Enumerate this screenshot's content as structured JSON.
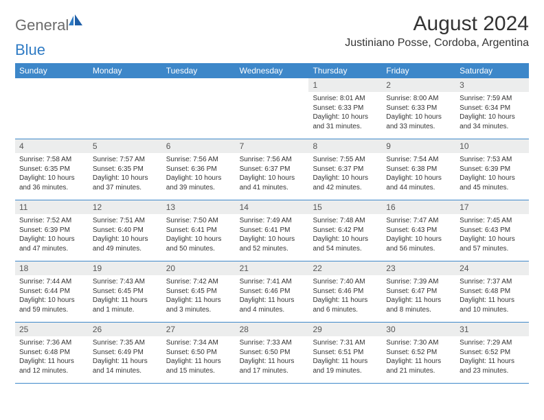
{
  "logo": {
    "text1": "General",
    "text2": "Blue"
  },
  "title": "August 2024",
  "location": "Justiniano Posse, Cordoba, Argentina",
  "weekdays": [
    "Sunday",
    "Monday",
    "Tuesday",
    "Wednesday",
    "Thursday",
    "Friday",
    "Saturday"
  ],
  "colors": {
    "header_bar": "#3d87c9",
    "day_number_bg": "#eceded",
    "logo_gray": "#6b6b6b",
    "logo_blue": "#2f7bc4",
    "text": "#333333"
  },
  "weeks": [
    [
      {
        "n": "",
        "sunrise": "",
        "sunset": "",
        "daylight": ""
      },
      {
        "n": "",
        "sunrise": "",
        "sunset": "",
        "daylight": ""
      },
      {
        "n": "",
        "sunrise": "",
        "sunset": "",
        "daylight": ""
      },
      {
        "n": "",
        "sunrise": "",
        "sunset": "",
        "daylight": ""
      },
      {
        "n": "1",
        "sunrise": "Sunrise: 8:01 AM",
        "sunset": "Sunset: 6:33 PM",
        "daylight": "Daylight: 10 hours and 31 minutes."
      },
      {
        "n": "2",
        "sunrise": "Sunrise: 8:00 AM",
        "sunset": "Sunset: 6:33 PM",
        "daylight": "Daylight: 10 hours and 33 minutes."
      },
      {
        "n": "3",
        "sunrise": "Sunrise: 7:59 AM",
        "sunset": "Sunset: 6:34 PM",
        "daylight": "Daylight: 10 hours and 34 minutes."
      }
    ],
    [
      {
        "n": "4",
        "sunrise": "Sunrise: 7:58 AM",
        "sunset": "Sunset: 6:35 PM",
        "daylight": "Daylight: 10 hours and 36 minutes."
      },
      {
        "n": "5",
        "sunrise": "Sunrise: 7:57 AM",
        "sunset": "Sunset: 6:35 PM",
        "daylight": "Daylight: 10 hours and 37 minutes."
      },
      {
        "n": "6",
        "sunrise": "Sunrise: 7:56 AM",
        "sunset": "Sunset: 6:36 PM",
        "daylight": "Daylight: 10 hours and 39 minutes."
      },
      {
        "n": "7",
        "sunrise": "Sunrise: 7:56 AM",
        "sunset": "Sunset: 6:37 PM",
        "daylight": "Daylight: 10 hours and 41 minutes."
      },
      {
        "n": "8",
        "sunrise": "Sunrise: 7:55 AM",
        "sunset": "Sunset: 6:37 PM",
        "daylight": "Daylight: 10 hours and 42 minutes."
      },
      {
        "n": "9",
        "sunrise": "Sunrise: 7:54 AM",
        "sunset": "Sunset: 6:38 PM",
        "daylight": "Daylight: 10 hours and 44 minutes."
      },
      {
        "n": "10",
        "sunrise": "Sunrise: 7:53 AM",
        "sunset": "Sunset: 6:39 PM",
        "daylight": "Daylight: 10 hours and 45 minutes."
      }
    ],
    [
      {
        "n": "11",
        "sunrise": "Sunrise: 7:52 AM",
        "sunset": "Sunset: 6:39 PM",
        "daylight": "Daylight: 10 hours and 47 minutes."
      },
      {
        "n": "12",
        "sunrise": "Sunrise: 7:51 AM",
        "sunset": "Sunset: 6:40 PM",
        "daylight": "Daylight: 10 hours and 49 minutes."
      },
      {
        "n": "13",
        "sunrise": "Sunrise: 7:50 AM",
        "sunset": "Sunset: 6:41 PM",
        "daylight": "Daylight: 10 hours and 50 minutes."
      },
      {
        "n": "14",
        "sunrise": "Sunrise: 7:49 AM",
        "sunset": "Sunset: 6:41 PM",
        "daylight": "Daylight: 10 hours and 52 minutes."
      },
      {
        "n": "15",
        "sunrise": "Sunrise: 7:48 AM",
        "sunset": "Sunset: 6:42 PM",
        "daylight": "Daylight: 10 hours and 54 minutes."
      },
      {
        "n": "16",
        "sunrise": "Sunrise: 7:47 AM",
        "sunset": "Sunset: 6:43 PM",
        "daylight": "Daylight: 10 hours and 56 minutes."
      },
      {
        "n": "17",
        "sunrise": "Sunrise: 7:45 AM",
        "sunset": "Sunset: 6:43 PM",
        "daylight": "Daylight: 10 hours and 57 minutes."
      }
    ],
    [
      {
        "n": "18",
        "sunrise": "Sunrise: 7:44 AM",
        "sunset": "Sunset: 6:44 PM",
        "daylight": "Daylight: 10 hours and 59 minutes."
      },
      {
        "n": "19",
        "sunrise": "Sunrise: 7:43 AM",
        "sunset": "Sunset: 6:45 PM",
        "daylight": "Daylight: 11 hours and 1 minute."
      },
      {
        "n": "20",
        "sunrise": "Sunrise: 7:42 AM",
        "sunset": "Sunset: 6:45 PM",
        "daylight": "Daylight: 11 hours and 3 minutes."
      },
      {
        "n": "21",
        "sunrise": "Sunrise: 7:41 AM",
        "sunset": "Sunset: 6:46 PM",
        "daylight": "Daylight: 11 hours and 4 minutes."
      },
      {
        "n": "22",
        "sunrise": "Sunrise: 7:40 AM",
        "sunset": "Sunset: 6:46 PM",
        "daylight": "Daylight: 11 hours and 6 minutes."
      },
      {
        "n": "23",
        "sunrise": "Sunrise: 7:39 AM",
        "sunset": "Sunset: 6:47 PM",
        "daylight": "Daylight: 11 hours and 8 minutes."
      },
      {
        "n": "24",
        "sunrise": "Sunrise: 7:37 AM",
        "sunset": "Sunset: 6:48 PM",
        "daylight": "Daylight: 11 hours and 10 minutes."
      }
    ],
    [
      {
        "n": "25",
        "sunrise": "Sunrise: 7:36 AM",
        "sunset": "Sunset: 6:48 PM",
        "daylight": "Daylight: 11 hours and 12 minutes."
      },
      {
        "n": "26",
        "sunrise": "Sunrise: 7:35 AM",
        "sunset": "Sunset: 6:49 PM",
        "daylight": "Daylight: 11 hours and 14 minutes."
      },
      {
        "n": "27",
        "sunrise": "Sunrise: 7:34 AM",
        "sunset": "Sunset: 6:50 PM",
        "daylight": "Daylight: 11 hours and 15 minutes."
      },
      {
        "n": "28",
        "sunrise": "Sunrise: 7:33 AM",
        "sunset": "Sunset: 6:50 PM",
        "daylight": "Daylight: 11 hours and 17 minutes."
      },
      {
        "n": "29",
        "sunrise": "Sunrise: 7:31 AM",
        "sunset": "Sunset: 6:51 PM",
        "daylight": "Daylight: 11 hours and 19 minutes."
      },
      {
        "n": "30",
        "sunrise": "Sunrise: 7:30 AM",
        "sunset": "Sunset: 6:52 PM",
        "daylight": "Daylight: 11 hours and 21 minutes."
      },
      {
        "n": "31",
        "sunrise": "Sunrise: 7:29 AM",
        "sunset": "Sunset: 6:52 PM",
        "daylight": "Daylight: 11 hours and 23 minutes."
      }
    ]
  ]
}
